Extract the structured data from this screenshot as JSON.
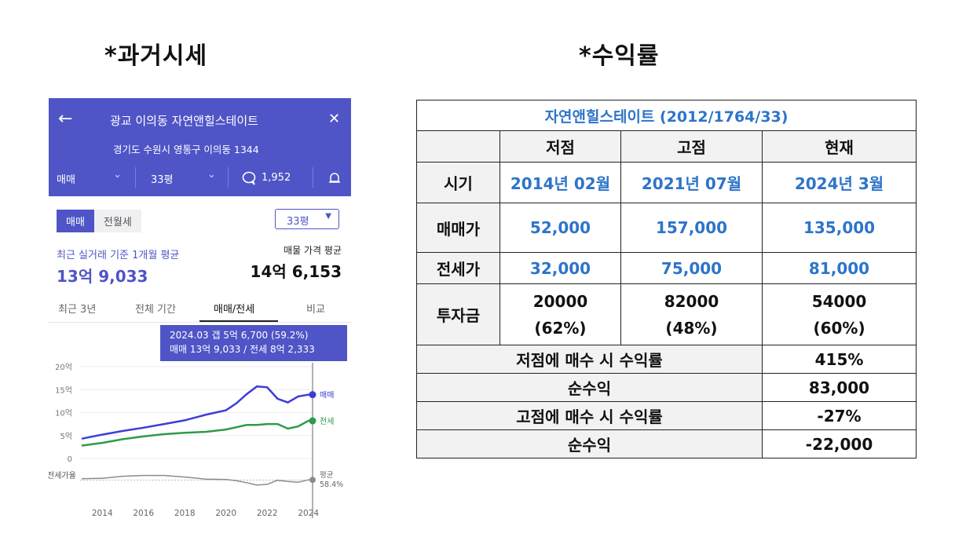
{
  "headings": {
    "left": "*과거시세",
    "right": "*수익률"
  },
  "app": {
    "back_icon": "←",
    "title": "광교 이의동 자연앤힐스테이트",
    "close_icon": "✕",
    "address": "경기도 수원시 영통구 이의동 1344",
    "filter_trade": "매매",
    "filter_size": "33평",
    "chevron": "⌄",
    "comment_count": "1,952",
    "tabs": [
      "매매",
      "전월세"
    ],
    "size_select": "33평",
    "recent_label": "최근 실거래 기준 1개월 평균",
    "recent_value": "13억 9,033",
    "listing_label": "매물 가격 평균",
    "listing_value": "14억 6,153",
    "sub_tabs": [
      "최근 3년",
      "전체 기간",
      "매매/전세",
      "비교"
    ],
    "tooltip_line1": "2024.03  갭 5억 6,700 (59.2%)",
    "tooltip_line2": "매매 13억 9,033 / 전세 8억 2,333",
    "colors": {
      "accent": "#4f55c6",
      "sale": "#3d3dd6",
      "jeonse": "#2e9b4a",
      "ratio": "#8c8c8c"
    }
  },
  "chart_data": {
    "type": "line",
    "y_ticks": [
      "20억",
      "15억",
      "10억",
      "5억",
      "0"
    ],
    "x_ticks": [
      "2014",
      "2016",
      "2018",
      "2020",
      "2022",
      "2024"
    ],
    "ratio_label": "전세가율",
    "end_labels": {
      "sale": "매매",
      "jeonse": "전세",
      "avg": "평균",
      "avg_value": "58.4%"
    },
    "ylim": [
      0,
      20
    ],
    "x": [
      2013.0,
      2014.0,
      2015.0,
      2016.0,
      2017.0,
      2018.0,
      2019.0,
      2020.0,
      2020.5,
      2021.0,
      2021.5,
      2022.0,
      2022.5,
      2023.0,
      2023.5,
      2024.0,
      2024.2
    ],
    "series": [
      {
        "name": "매매",
        "values": [
          4.3,
          5.2,
          6.0,
          6.7,
          7.5,
          8.3,
          9.5,
          10.5,
          12.0,
          14.0,
          15.7,
          15.5,
          13.0,
          12.2,
          13.5,
          13.9,
          13.9
        ]
      },
      {
        "name": "전세",
        "values": [
          2.8,
          3.4,
          4.2,
          4.8,
          5.3,
          5.6,
          5.8,
          6.3,
          6.8,
          7.3,
          7.3,
          7.5,
          7.5,
          6.5,
          7.0,
          8.2,
          8.2
        ]
      }
    ],
    "ratio_values": [
      62,
      63,
      68,
      70,
      70,
      66,
      61,
      60,
      57,
      52,
      46,
      48,
      58,
      55,
      53,
      59,
      59
    ],
    "ratio_avg": 58.4
  },
  "table": {
    "title": "자연앤힐스테이트 (2012/1764/33)",
    "col_headers": [
      "저점",
      "고점",
      "현재"
    ],
    "rows": {
      "period": {
        "label": "시기",
        "values": [
          "2014년 02월",
          "2021년 07월",
          "2024년 3월"
        ]
      },
      "sale": {
        "label": "매매가",
        "values": [
          "52,000",
          "157,000",
          "135,000"
        ]
      },
      "jeonse": {
        "label": "전세가",
        "values": [
          "32,000",
          "75,000",
          "81,000"
        ]
      },
      "invest": {
        "label": "투자금",
        "values": [
          "20000",
          "82000",
          "54000"
        ],
        "pcts": [
          "(62%)",
          "(48%)",
          "(60%)"
        ]
      }
    },
    "summary": [
      {
        "label": "저점에 매수 시 수익률",
        "value": "415%"
      },
      {
        "label": "순수익",
        "value": "83,000"
      },
      {
        "label": "고점에 매수 시 수익률",
        "value": "-27%"
      },
      {
        "label": "순수익",
        "value": "-22,000"
      }
    ]
  }
}
